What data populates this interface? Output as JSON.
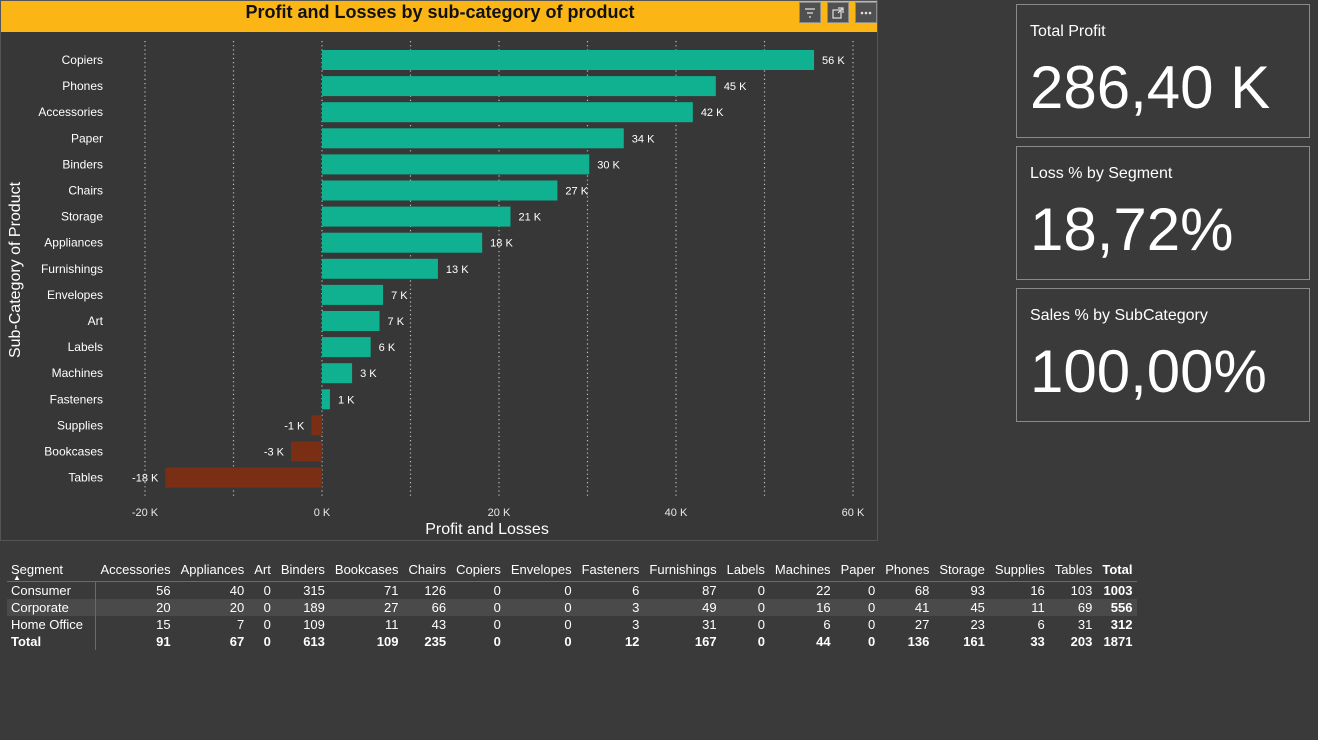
{
  "chart": {
    "title": "Profit and Losses by sub-category of product",
    "buttons": {
      "filter": "filter-icon",
      "focus": "focus-mode-icon",
      "more": "more-options-icon"
    }
  },
  "chart_data": {
    "type": "bar",
    "orientation": "horizontal",
    "categories": [
      "Copiers",
      "Phones",
      "Accessories",
      "Paper",
      "Binders",
      "Chairs",
      "Storage",
      "Appliances",
      "Furnishings",
      "Envelopes",
      "Art",
      "Labels",
      "Machines",
      "Fasteners",
      "Supplies",
      "Bookcases",
      "Tables"
    ],
    "values": [
      55.6,
      44.5,
      41.9,
      34.1,
      30.2,
      26.6,
      21.3,
      18.1,
      13.1,
      6.9,
      6.5,
      5.5,
      3.4,
      0.9,
      -1.2,
      -3.5,
      -17.7
    ],
    "value_labels": [
      "56 K",
      "45 K",
      "42 K",
      "34 K",
      "30 K",
      "27 K",
      "21 K",
      "18 K",
      "13 K",
      "7 K",
      "7 K",
      "6 K",
      "3 K",
      "1 K",
      "-1 K",
      "-3 K",
      "-18 K"
    ],
    "unit": "K",
    "xlabel": "Profit and Losses",
    "ylabel": "Sub-Category of Product",
    "xlim": [
      -20,
      60
    ],
    "xticks": [
      -20,
      0,
      20,
      40,
      60
    ],
    "xtick_labels": [
      "-20 K",
      "0 K",
      "20 K",
      "40 K",
      "60 K"
    ],
    "grid": "vertical dotted",
    "colors": {
      "positive": "#0fb190",
      "negative": "#7a2e14"
    }
  },
  "cards": [
    {
      "label": "Total Profit",
      "value": "286,40 K"
    },
    {
      "label": "Loss % by Segment",
      "value": "18,72%"
    },
    {
      "label": "Sales % by SubCategory",
      "value": "100,00%"
    }
  ],
  "matrix": {
    "row_header": "Segment",
    "columns": [
      "Accessories",
      "Appliances",
      "Art",
      "Binders",
      "Bookcases",
      "Chairs",
      "Copiers",
      "Envelopes",
      "Fasteners",
      "Furnishings",
      "Labels",
      "Machines",
      "Paper",
      "Phones",
      "Storage",
      "Supplies",
      "Tables",
      "Total"
    ],
    "rows": [
      {
        "segment": "Consumer",
        "values": [
          "56",
          "40",
          "0",
          "315",
          "71",
          "126",
          "0",
          "0",
          "6",
          "87",
          "0",
          "22",
          "0",
          "68",
          "93",
          "16",
          "103",
          "1003"
        ]
      },
      {
        "segment": "Corporate",
        "values": [
          "20",
          "20",
          "0",
          "189",
          "27",
          "66",
          "0",
          "0",
          "3",
          "49",
          "0",
          "16",
          "0",
          "41",
          "45",
          "11",
          "69",
          "556"
        ]
      },
      {
        "segment": "Home Office",
        "values": [
          "15",
          "7",
          "0",
          "109",
          "11",
          "43",
          "0",
          "0",
          "3",
          "31",
          "0",
          "6",
          "0",
          "27",
          "23",
          "6",
          "31",
          "312"
        ]
      }
    ],
    "total": {
      "segment": "Total",
      "values": [
        "91",
        "67",
        "0",
        "613",
        "109",
        "235",
        "0",
        "0",
        "12",
        "167",
        "0",
        "44",
        "0",
        "136",
        "161",
        "33",
        "203",
        "1871"
      ]
    }
  },
  "colors": {
    "header_bar": "#fbb515",
    "background": "#3a3a3a"
  }
}
